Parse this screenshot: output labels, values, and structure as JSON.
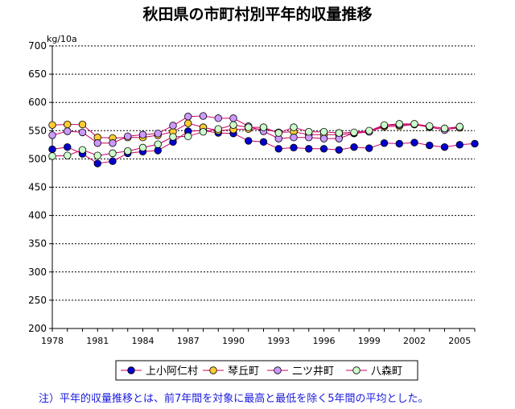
{
  "chart_data": {
    "type": "line",
    "title": "秋田県の市町村別平年的収量推移",
    "ylabel": "kg/10a",
    "xlabel": "",
    "ylim": [
      200,
      700
    ],
    "yticks": [
      200,
      250,
      300,
      350,
      400,
      450,
      500,
      550,
      600,
      650,
      700
    ],
    "xlim": [
      1978,
      2006
    ],
    "xticks": [
      1978,
      1981,
      1984,
      1987,
      1990,
      1993,
      1996,
      1999,
      2002,
      2005
    ],
    "grid": true,
    "legend_position": "bottom",
    "x": [
      1978,
      1979,
      1980,
      1981,
      1982,
      1983,
      1984,
      1985,
      1986,
      1987,
      1988,
      1989,
      1990,
      1991,
      1992,
      1993,
      1994,
      1995,
      1996,
      1997,
      1998,
      1999,
      2000,
      2001,
      2002,
      2003,
      2004,
      2005,
      2006
    ],
    "series": [
      {
        "name": "上小阿仁村",
        "color": "#0000cc",
        "values": [
          517,
          521,
          509,
          492,
          496,
          510,
          513,
          515,
          530,
          549,
          550,
          546,
          545,
          532,
          530,
          518,
          520,
          518,
          518,
          516,
          521,
          519,
          528,
          527,
          529,
          524,
          521,
          525,
          527
        ]
      },
      {
        "name": "琴丘町",
        "color": "#ffcc33",
        "values": [
          560,
          561,
          561,
          538,
          537,
          538,
          538,
          542,
          548,
          563,
          556,
          550,
          552,
          553,
          553,
          547,
          548,
          543,
          543,
          543,
          545,
          548,
          557,
          558,
          561,
          556,
          552,
          555,
          null
        ]
      },
      {
        "name": "二ツ井町",
        "color": "#cc99ff",
        "values": [
          542,
          549,
          547,
          528,
          528,
          540,
          543,
          545,
          559,
          575,
          576,
          572,
          572,
          558,
          549,
          536,
          538,
          538,
          536,
          536,
          546,
          548,
          559,
          560,
          561,
          557,
          551,
          557,
          null
        ]
      },
      {
        "name": "八森町",
        "color": "#ccffcc",
        "values": [
          505,
          506,
          516,
          506,
          510,
          514,
          520,
          526,
          539,
          540,
          548,
          553,
          560,
          556,
          556,
          546,
          556,
          548,
          548,
          546,
          547,
          550,
          560,
          562,
          562,
          558,
          554,
          557,
          null
        ]
      }
    ]
  },
  "note": "注）平年的収量推移とは、前7年間を対象に最高と最低を除く5年間の平均とした。"
}
